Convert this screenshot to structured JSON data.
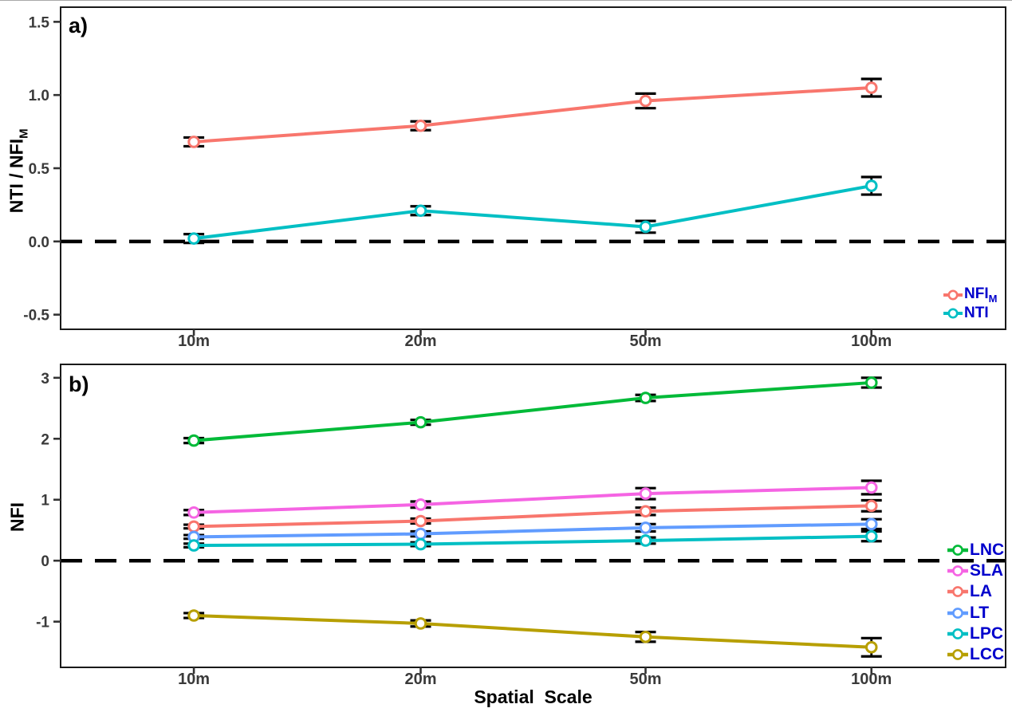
{
  "x_axis": {
    "label": "Spatial  Scale",
    "categories": [
      "10m",
      "20m",
      "50m",
      "100m"
    ]
  },
  "colors": {
    "legend_text": "#0000CC",
    "axis_text": "#3a3a3a",
    "axis_title": "#000000",
    "reference_line": "#000000",
    "error_bar": "#000000",
    "panel_border": "#1a1a1a"
  },
  "chart_data": [
    {
      "type": "line",
      "panel_label": "a)",
      "ylabel_main": "NTI / NFI",
      "ylabel_sub": "M",
      "categories": [
        "10m",
        "20m",
        "50m",
        "100m"
      ],
      "ylim": [
        -0.6,
        1.6
      ],
      "ytick_values": [
        -0.5,
        0.0,
        0.5,
        1.0,
        1.5
      ],
      "ytick_labels": [
        "-0.5",
        "0.0",
        "0.5",
        "1.0",
        "1.5"
      ],
      "reference_line_y": 0,
      "grid": false,
      "legend_position": "inside bottom-right",
      "series": [
        {
          "name": "NFI_M",
          "label_main": "NFI",
          "label_sub": "M",
          "color": "#F8766D",
          "values": [
            0.68,
            0.79,
            0.96,
            1.05
          ],
          "errors": [
            0.03,
            0.03,
            0.05,
            0.06
          ]
        },
        {
          "name": "NTI",
          "label_main": "NTI",
          "label_sub": "",
          "color": "#00BFC4",
          "values": [
            0.02,
            0.21,
            0.1,
            0.38
          ],
          "errors": [
            0.03,
            0.03,
            0.04,
            0.06
          ]
        }
      ]
    },
    {
      "type": "line",
      "panel_label": "b)",
      "ylabel_main": "NFI",
      "ylabel_sub": "",
      "categories": [
        "10m",
        "20m",
        "50m",
        "100m"
      ],
      "ylim": [
        -1.75,
        3.22
      ],
      "ytick_values": [
        -1,
        0,
        1,
        2,
        3
      ],
      "ytick_labels": [
        "-1",
        "0",
        "1",
        "2",
        "3"
      ],
      "reference_line_y": 0,
      "grid": false,
      "legend_position": "inside right",
      "series": [
        {
          "name": "LNC",
          "label_main": "LNC",
          "label_sub": "",
          "color": "#00BA38",
          "values": [
            1.97,
            2.27,
            2.67,
            2.92
          ],
          "errors": [
            0.04,
            0.04,
            0.05,
            0.08
          ]
        },
        {
          "name": "SLA",
          "label_main": "SLA",
          "label_sub": "",
          "color": "#F564E3",
          "values": [
            0.79,
            0.92,
            1.1,
            1.2
          ],
          "errors": [
            0.04,
            0.05,
            0.09,
            0.11
          ]
        },
        {
          "name": "LA",
          "label_main": "LA",
          "label_sub": "",
          "color": "#F8766D",
          "values": [
            0.56,
            0.65,
            0.81,
            0.9
          ],
          "errors": [
            0.03,
            0.04,
            0.06,
            0.09
          ]
        },
        {
          "name": "LT",
          "label_main": "LT",
          "label_sub": "",
          "color": "#619CFF",
          "values": [
            0.39,
            0.44,
            0.54,
            0.6
          ],
          "errors": [
            0.03,
            0.04,
            0.06,
            0.08
          ]
        },
        {
          "name": "LPC",
          "label_main": "LPC",
          "label_sub": "",
          "color": "#00BFC4",
          "values": [
            0.25,
            0.27,
            0.33,
            0.4
          ],
          "errors": [
            0.03,
            0.03,
            0.05,
            0.08
          ]
        },
        {
          "name": "LCC",
          "label_main": "LCC",
          "label_sub": "",
          "color": "#B79F00",
          "values": [
            -0.9,
            -1.03,
            -1.25,
            -1.42
          ],
          "errors": [
            0.04,
            0.05,
            0.08,
            0.15
          ]
        }
      ]
    }
  ]
}
